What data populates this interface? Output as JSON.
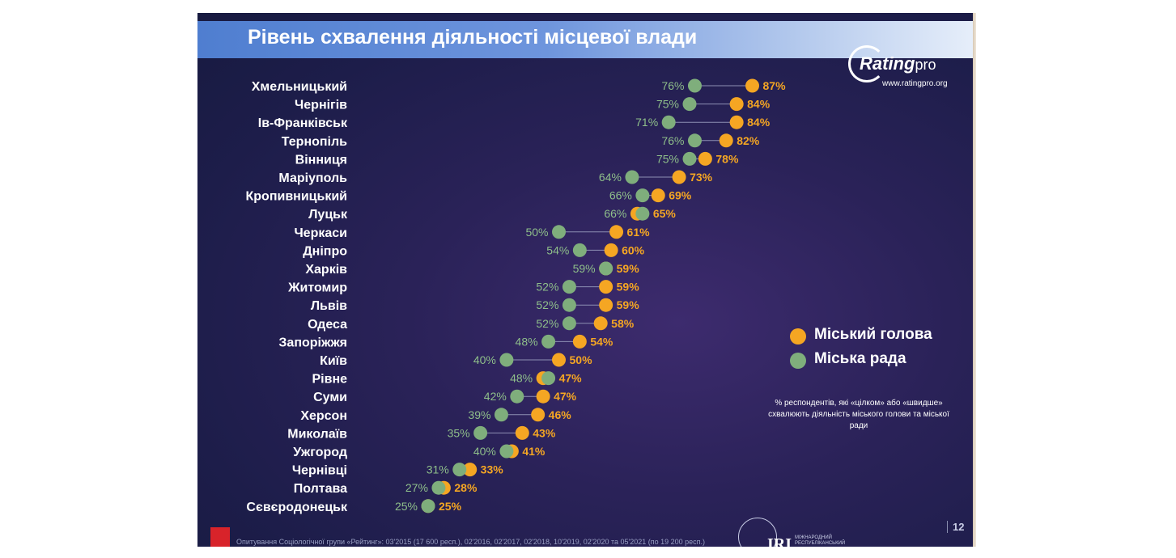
{
  "title": "Рівень схвалення діяльності місцевої влади",
  "logo": {
    "name": "Rating",
    "suffix": "pro",
    "url": "www.ratingpro.org"
  },
  "legend": [
    {
      "label": "Міський голова",
      "color": "#f5a623"
    },
    {
      "label": "Міська рада",
      "color": "#7fae7c"
    }
  ],
  "note": "% респондентів, які «цілком» або «швидше» схвалюють діяльність міського голови та міської ради",
  "footer": "Опитування Соціологічної групи «Рейтинг»: 03'2015 (17 600 респ.), 02'2016, 02'2017, 02'2018, 10'2019, 02'2020 та 05'2021 (по 19 200 респ.)",
  "page_number": "12",
  "partner_logo": "IRI",
  "partner_subtitle": "МІЖНАРОДНИЙ РЕСПУБЛІКАНСЬКИЙ ІНСТИТУТ",
  "chart_data": {
    "type": "dot",
    "categories": [
      "Хмельницький",
      "Чернігів",
      "Ів-Франківськ",
      "Тернопіль",
      "Вінниця",
      "Маріуполь",
      "Кропивницький",
      "Луцьк",
      "Черкаси",
      "Дніпро",
      "Харків",
      "Житомир",
      "Львів",
      "Одеса",
      "Запоріжжя",
      "Київ",
      "Рівне",
      "Суми",
      "Херсон",
      "Миколаїв",
      "Ужгород",
      "Чернівці",
      "Полтава",
      "Сєвєродонецьк"
    ],
    "series": [
      {
        "name": "Міський голова",
        "color": "#f5a623",
        "values": [
          87,
          84,
          84,
          82,
          78,
          73,
          69,
          65,
          61,
          60,
          59,
          59,
          59,
          58,
          54,
          50,
          47,
          47,
          46,
          43,
          41,
          33,
          28,
          25
        ]
      },
      {
        "name": "Міська рада",
        "color": "#7fae7c",
        "values": [
          76,
          75,
          71,
          76,
          75,
          64,
          66,
          66,
          50,
          54,
          59,
          52,
          52,
          52,
          48,
          40,
          48,
          42,
          39,
          35,
          40,
          31,
          27,
          25
        ]
      }
    ],
    "value_suffix": "%",
    "legend_position": "right"
  }
}
